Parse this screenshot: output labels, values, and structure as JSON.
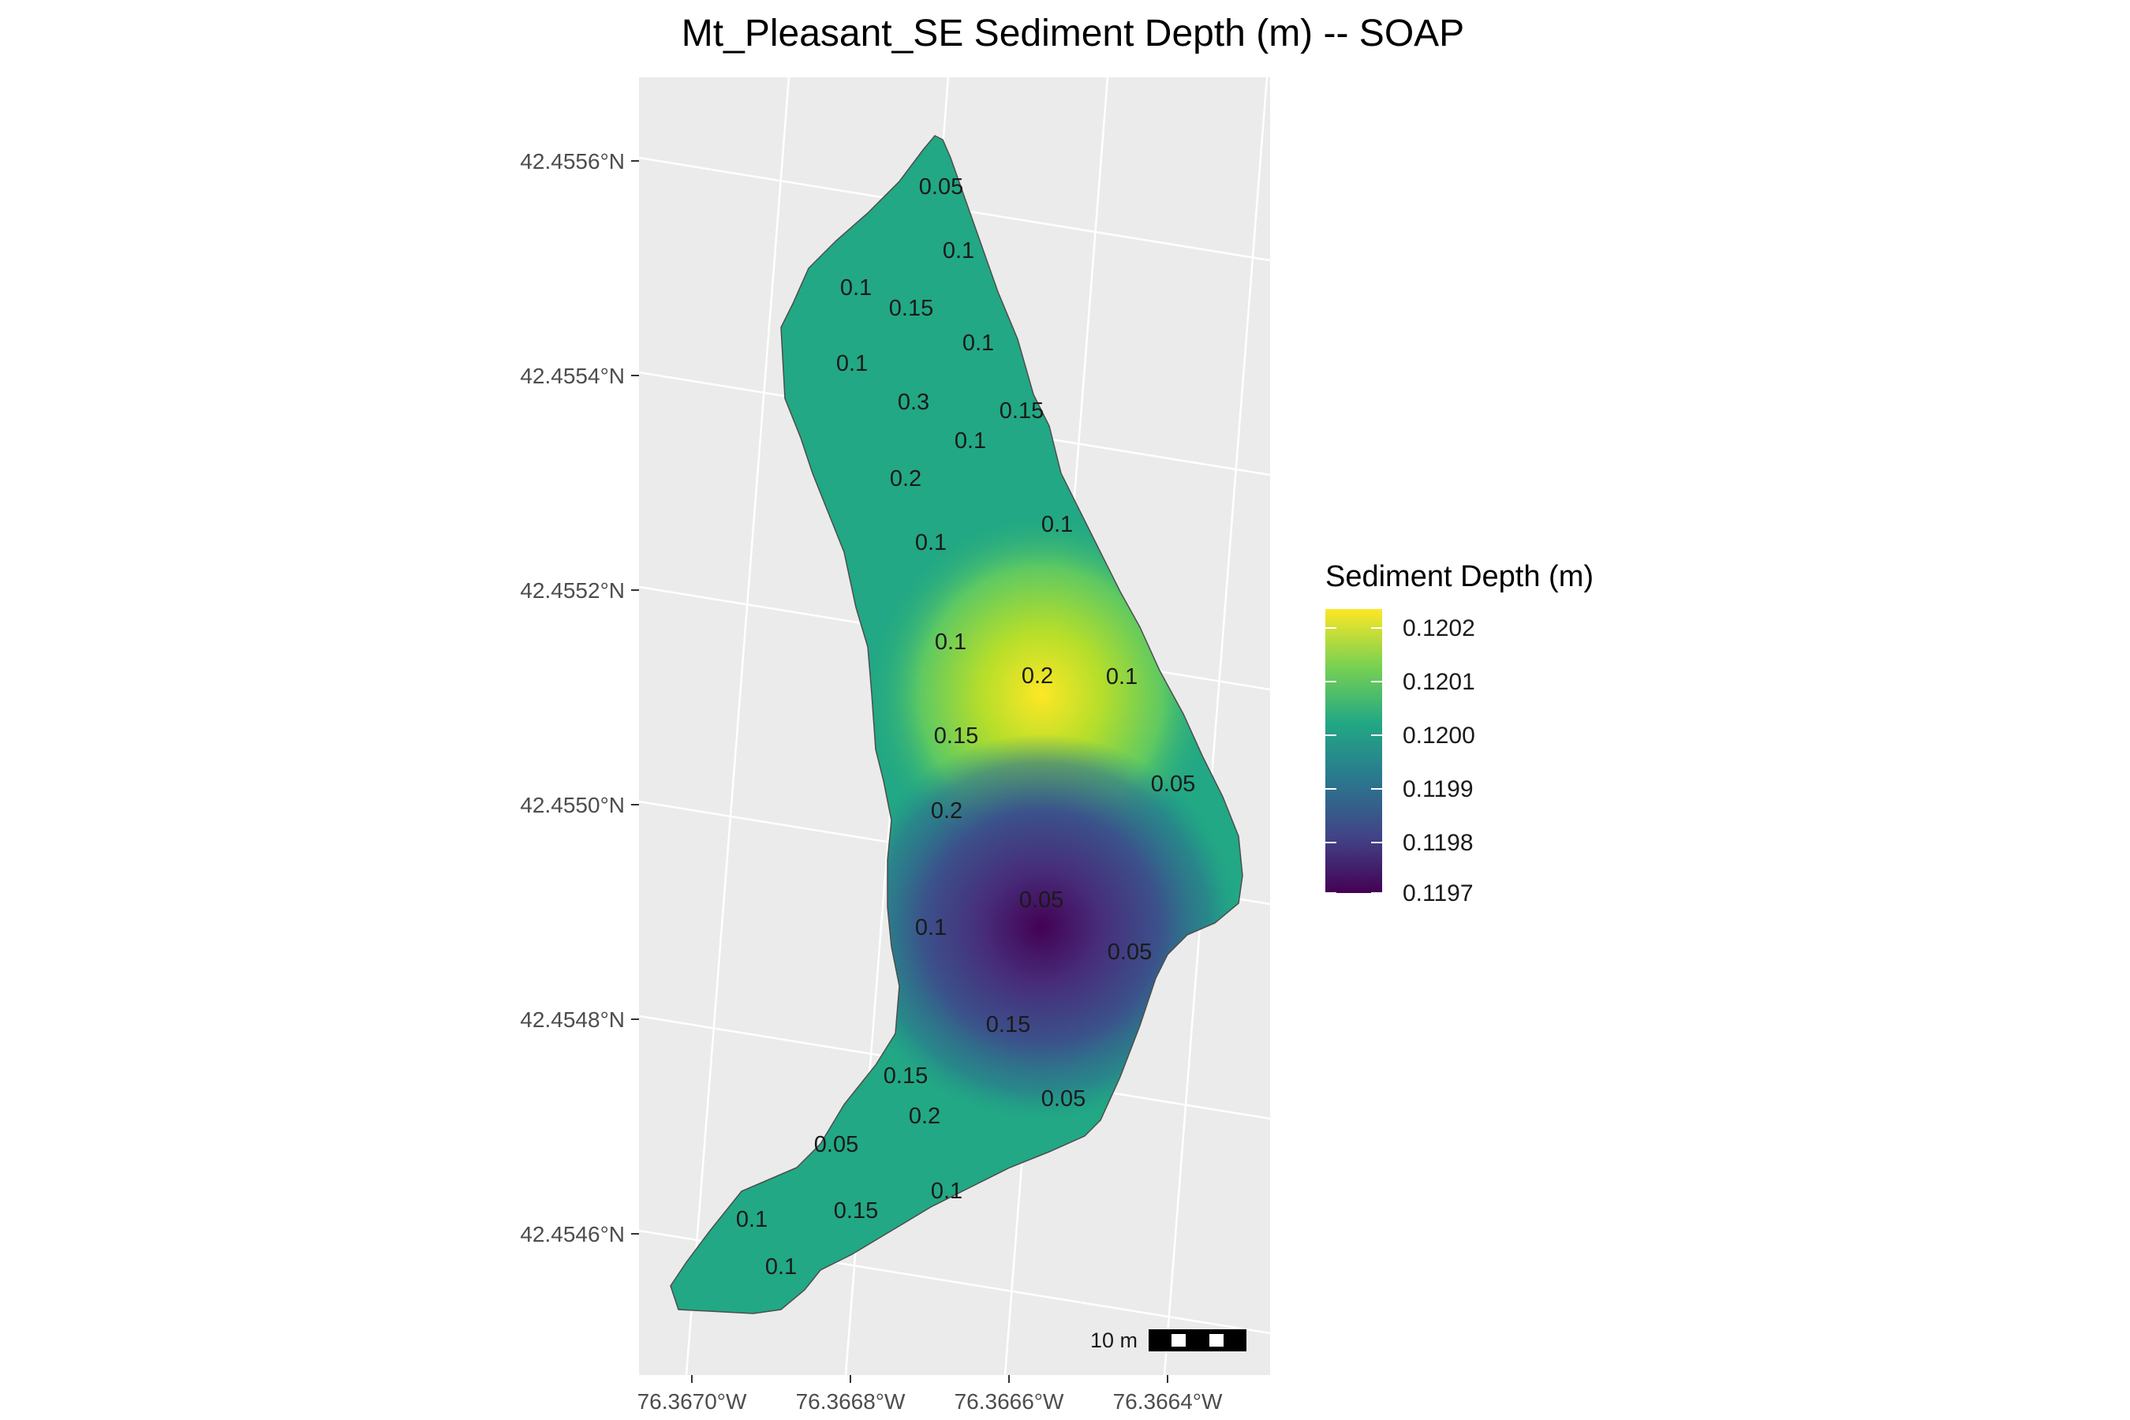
{
  "chart_data": {
    "type": "heatmap",
    "title": "Mt_Pleasant_SE Sediment Depth (m) -- SOAP",
    "x_ticks": [
      "76.3670°W",
      "76.3668°W",
      "76.3666°W",
      "76.3664°W"
    ],
    "y_ticks": [
      "42.4556°N",
      "42.4554°N",
      "42.4552°N",
      "42.4550°N",
      "42.4548°N",
      "42.4546°N"
    ],
    "legend": {
      "title": "Sediment Depth (m)",
      "placement": "right",
      "labels": [
        "0.1202",
        "0.1201",
        "0.1200",
        "0.1199",
        "0.1198",
        "0.1197"
      ],
      "colors": [
        "#fde725",
        "#7ad151",
        "#22a884",
        "#2a788e",
        "#414487",
        "#440154"
      ]
    },
    "scale_bar": "10 m",
    "background_color": "#ebebeb",
    "grid_color": "#ffffff",
    "field": {
      "fill_color": "#22a884",
      "high": {
        "value": 0.1202,
        "color": "#fde725"
      },
      "low": {
        "value": 0.1197,
        "color": "#440154"
      }
    },
    "contour_labels": [
      "0.05",
      "0.1",
      "0.1",
      "0.15",
      "0.1",
      "0.1",
      "0.3",
      "0.15",
      "0.1",
      "0.2",
      "0.1",
      "0.1",
      "0.1",
      "0.2",
      "0.1",
      "0.15",
      "0.05",
      "0.2",
      "0.05",
      "0.1",
      "0.05",
      "0.15",
      "0.15",
      "0.2",
      "0.05",
      "0.05",
      "0.1",
      "0.1",
      "0.15",
      "0.1"
    ]
  }
}
